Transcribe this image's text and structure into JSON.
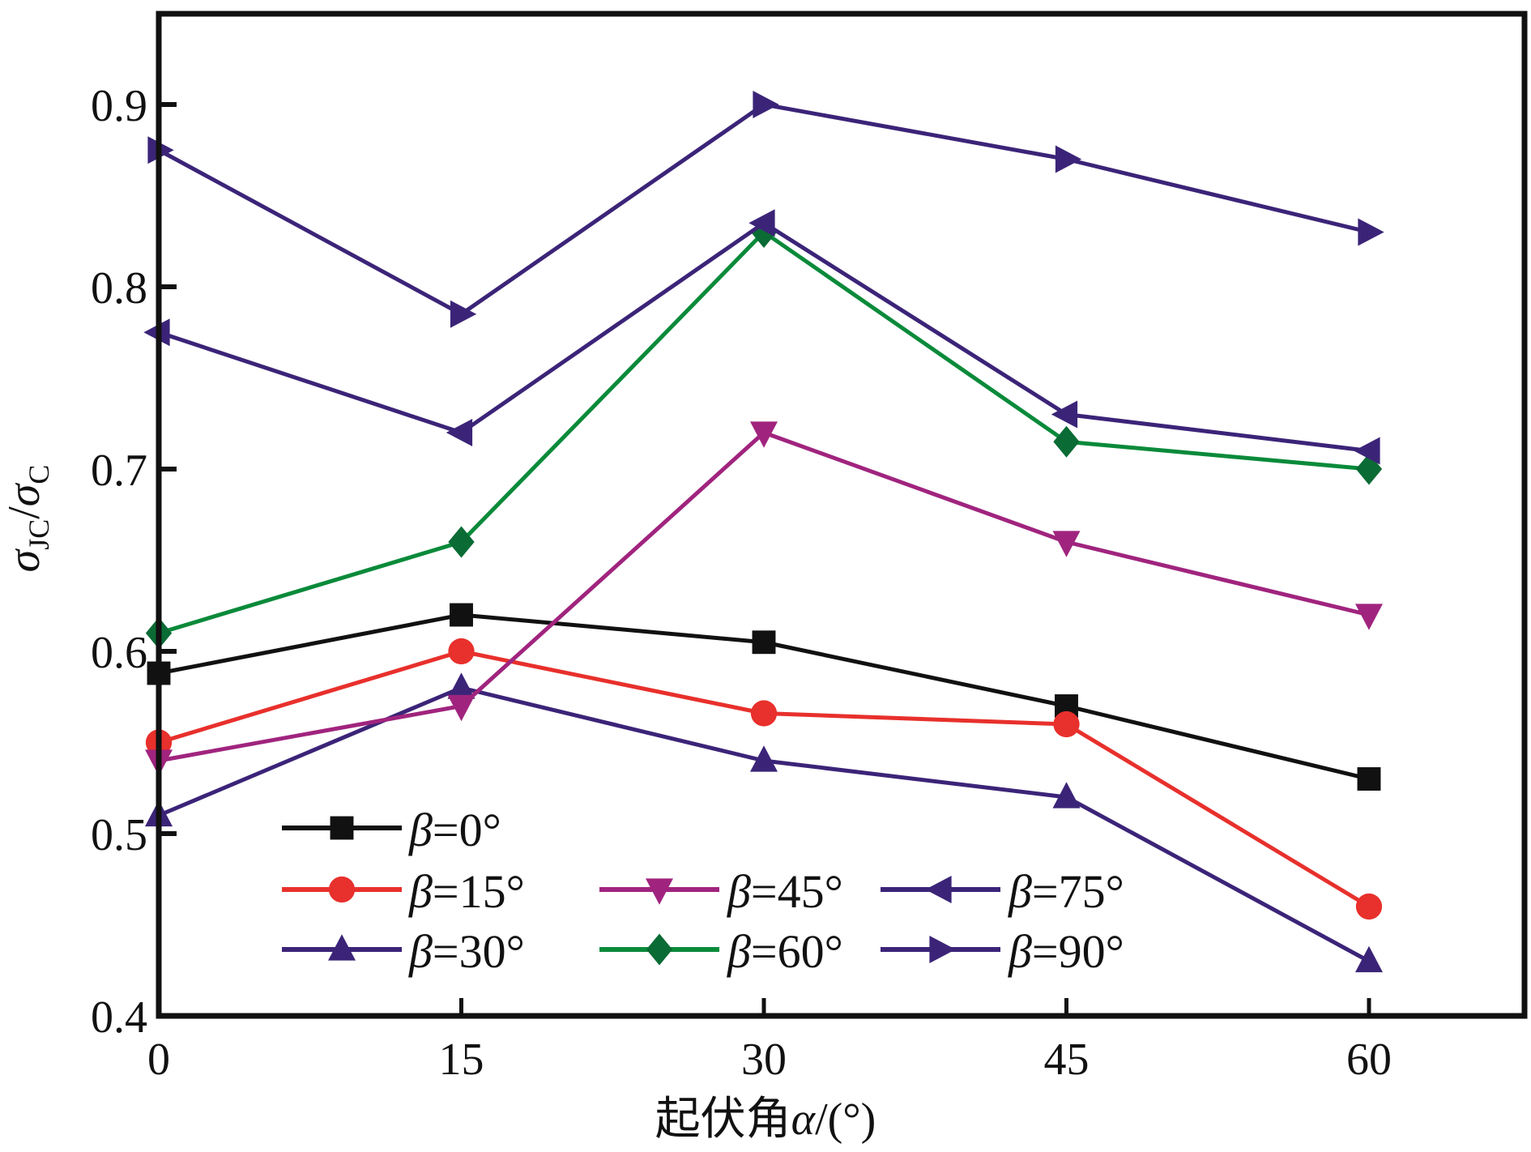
{
  "chart_data": {
    "type": "line",
    "title": "",
    "xlabel": "起伏角α/(°)",
    "ylabel": "σJC/σC",
    "ylabel_parts": {
      "main1": "σ",
      "sub1": "JC",
      "slash": "/",
      "main2": "σ",
      "sub2": "C"
    },
    "xlabel_parts": {
      "cn": "起伏角",
      "var": "α",
      "unit": "/(°)"
    },
    "xlim": [
      0,
      67.7
    ],
    "ylim": [
      0.4,
      0.95
    ],
    "x": [
      0,
      15,
      30,
      45,
      60
    ],
    "xticks": [
      0,
      15,
      30,
      45,
      60
    ],
    "xtick_labels": [
      "0",
      "15",
      "30",
      "45",
      "60"
    ],
    "yticks": [
      0.4,
      0.5,
      0.6,
      0.7,
      0.8,
      0.9
    ],
    "ytick_labels": [
      "0.4",
      "0.5",
      "0.6",
      "0.7",
      "0.8",
      "0.9"
    ],
    "grid": false,
    "legend_position": "bottom-left",
    "series": [
      {
        "name": "β=0°",
        "symbol": "β",
        "label": "=0°",
        "color": "#111111",
        "marker": "square",
        "values": [
          0.588,
          0.62,
          0.605,
          0.57,
          0.53
        ]
      },
      {
        "name": "β=15°",
        "symbol": "β",
        "label": "=15°",
        "color": "#e8302c",
        "marker": "circle",
        "values": [
          0.55,
          0.6,
          0.566,
          0.56,
          0.46
        ]
      },
      {
        "name": "β=30°",
        "symbol": "β",
        "label": "=30°",
        "color": "#3b2478",
        "marker": "triangle-up",
        "values": [
          0.51,
          0.58,
          0.54,
          0.52,
          0.43
        ]
      },
      {
        "name": "β=45°",
        "symbol": "β",
        "label": "=45°",
        "color": "#a0247e",
        "marker": "triangle-down",
        "values": [
          0.54,
          0.57,
          0.72,
          0.66,
          0.62
        ]
      },
      {
        "name": "β=60°",
        "symbol": "β",
        "label": "=60°",
        "color": "#0a8a3a",
        "marker_color": "#0b6b35",
        "marker": "diamond",
        "values": [
          0.61,
          0.66,
          0.83,
          0.715,
          0.7
        ]
      },
      {
        "name": "β=75°",
        "symbol": "β",
        "label": "=75°",
        "color": "#3b2478",
        "marker": "triangle-left",
        "values": [
          0.775,
          0.72,
          0.835,
          0.73,
          0.71
        ]
      },
      {
        "name": "β=90°",
        "symbol": "β",
        "label": "=90°",
        "color": "#3b2478",
        "marker": "triangle-right",
        "values": [
          0.875,
          0.785,
          0.9,
          0.87,
          0.83
        ]
      }
    ]
  }
}
